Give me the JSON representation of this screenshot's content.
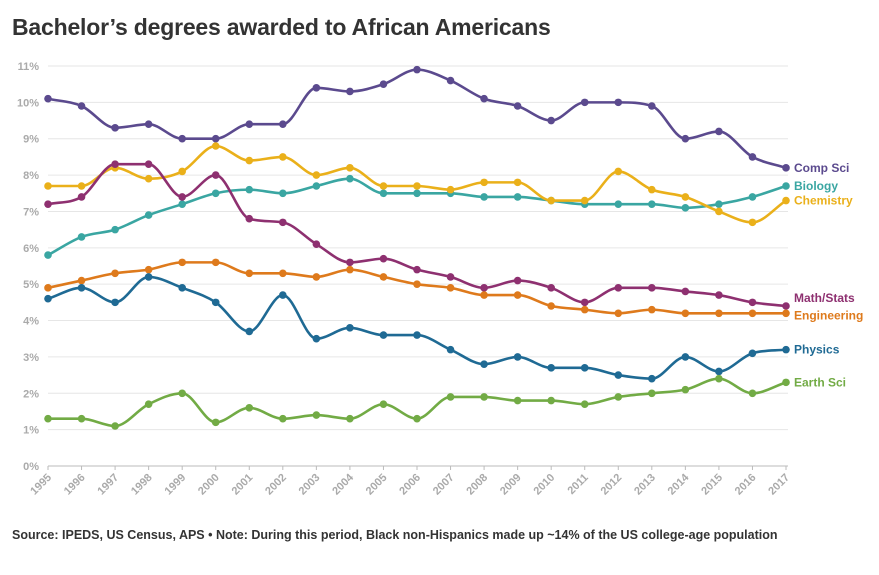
{
  "chart_data": {
    "type": "line",
    "title": "Bachelor’s degrees awarded to African Americans",
    "source": "Source: IPEDS, US Census, APS • Note: During this period, Black non-Hispanics made up ~14% of the US college-age population",
    "xlabel": "",
    "ylabel": "",
    "ylim": [
      0,
      11
    ],
    "yticks": [
      "0%",
      "1%",
      "2%",
      "3%",
      "4%",
      "5%",
      "6%",
      "7%",
      "8%",
      "9%",
      "10%",
      "11%"
    ],
    "x": [
      "1995",
      "1996",
      "1997",
      "1998",
      "1999",
      "2000",
      "2001",
      "2002",
      "2003",
      "2004",
      "2005",
      "2006",
      "2007",
      "2008",
      "2009",
      "2010",
      "2011",
      "2012",
      "2013",
      "2014",
      "2015",
      "2016",
      "2017"
    ],
    "grid": true,
    "series": [
      {
        "name": "Comp Sci",
        "color": "#5b4a8e",
        "values": [
          10.1,
          9.9,
          9.3,
          9.4,
          9.0,
          9.0,
          9.4,
          9.4,
          10.4,
          10.3,
          10.5,
          10.9,
          10.6,
          10.1,
          9.9,
          9.5,
          10.0,
          10.0,
          9.9,
          9.0,
          9.2,
          8.5,
          8.2
        ]
      },
      {
        "name": "Biology",
        "color": "#3aa6a2",
        "values": [
          5.8,
          6.3,
          6.5,
          6.9,
          7.2,
          7.5,
          7.6,
          7.5,
          7.7,
          7.9,
          7.5,
          7.5,
          7.5,
          7.4,
          7.4,
          7.3,
          7.2,
          7.2,
          7.2,
          7.1,
          7.2,
          7.4,
          7.7
        ]
      },
      {
        "name": "Chemistry",
        "color": "#eab01a",
        "values": [
          7.7,
          7.7,
          8.2,
          7.9,
          8.1,
          8.8,
          8.4,
          8.5,
          8.0,
          8.2,
          7.7,
          7.7,
          7.6,
          7.8,
          7.8,
          7.3,
          7.3,
          8.1,
          7.6,
          7.4,
          7.0,
          6.7,
          7.3
        ]
      },
      {
        "name": "Math/Stats",
        "color": "#8e3070",
        "values": [
          7.2,
          7.4,
          8.3,
          8.3,
          7.4,
          8.0,
          6.8,
          6.7,
          6.1,
          5.6,
          5.7,
          5.4,
          5.2,
          4.9,
          5.1,
          4.9,
          4.5,
          4.9,
          4.9,
          4.8,
          4.7,
          4.5,
          4.4
        ]
      },
      {
        "name": "Engineering",
        "color": "#de7a1c",
        "values": [
          4.9,
          5.1,
          5.3,
          5.4,
          5.6,
          5.6,
          5.3,
          5.3,
          5.2,
          5.4,
          5.2,
          5.0,
          4.9,
          4.7,
          4.7,
          4.4,
          4.3,
          4.2,
          4.3,
          4.2,
          4.2,
          4.2,
          4.2
        ]
      },
      {
        "name": "Physics",
        "color": "#1f6a94",
        "values": [
          4.6,
          4.9,
          4.5,
          5.2,
          4.9,
          4.5,
          3.7,
          4.7,
          3.5,
          3.8,
          3.6,
          3.6,
          3.2,
          2.8,
          3.0,
          2.7,
          2.7,
          2.5,
          2.4,
          3.0,
          2.6,
          3.1,
          3.2
        ]
      },
      {
        "name": "Earth Sci",
        "color": "#72ab45",
        "values": [
          1.3,
          1.3,
          1.1,
          1.7,
          2.0,
          1.2,
          1.6,
          1.3,
          1.4,
          1.3,
          1.7,
          1.3,
          1.9,
          1.9,
          1.8,
          1.8,
          1.7,
          1.9,
          2.0,
          2.1,
          2.4,
          2.0,
          2.3
        ]
      }
    ]
  }
}
